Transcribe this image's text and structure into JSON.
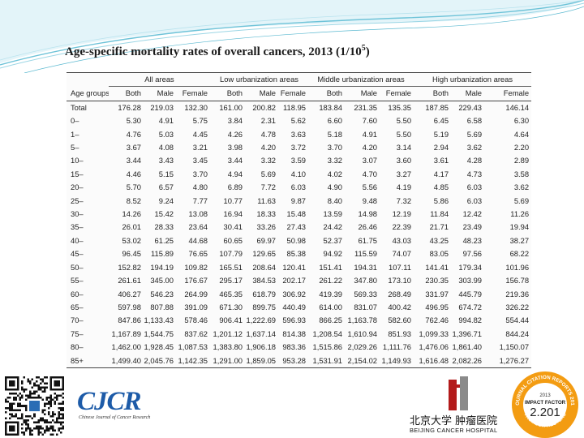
{
  "title": {
    "text": "Age-specific mortality rates of overall cancers, 2013 (1/10",
    "sup": "5",
    "close": ")"
  },
  "table": {
    "age_header": "Age groups",
    "groups": [
      "All areas",
      "Low urbanization areas",
      "Middle urbanization areas",
      "High urbanization areas"
    ],
    "subheaders": [
      "Both",
      "Male",
      "Female"
    ],
    "rows": [
      [
        "Total",
        "176.28",
        "219.03",
        "132.30",
        "161.00",
        "200.82",
        "118.95",
        "183.84",
        "231.35",
        "135.35",
        "187.85",
        "229.43",
        "146.14"
      ],
      [
        "0–",
        "5.30",
        "4.91",
        "5.75",
        "3.84",
        "2.31",
        "5.62",
        "6.60",
        "7.60",
        "5.50",
        "6.45",
        "6.58",
        "6.30"
      ],
      [
        "1–",
        "4.76",
        "5.03",
        "4.45",
        "4.26",
        "4.78",
        "3.63",
        "5.18",
        "4.91",
        "5.50",
        "5.19",
        "5.69",
        "4.64"
      ],
      [
        "5–",
        "3.67",
        "4.08",
        "3.21",
        "3.98",
        "4.20",
        "3.72",
        "3.70",
        "4.20",
        "3.14",
        "2.94",
        "3.62",
        "2.20"
      ],
      [
        "10–",
        "3.44",
        "3.43",
        "3.45",
        "3.44",
        "3.32",
        "3.59",
        "3.32",
        "3.07",
        "3.60",
        "3.61",
        "4.28",
        "2.89"
      ],
      [
        "15–",
        "4.46",
        "5.15",
        "3.70",
        "4.94",
        "5.69",
        "4.10",
        "4.02",
        "4.70",
        "3.27",
        "4.17",
        "4.73",
        "3.58"
      ],
      [
        "20–",
        "5.70",
        "6.57",
        "4.80",
        "6.89",
        "7.72",
        "6.03",
        "4.90",
        "5.56",
        "4.19",
        "4.85",
        "6.03",
        "3.62"
      ],
      [
        "25–",
        "8.52",
        "9.24",
        "7.77",
        "10.77",
        "11.63",
        "9.87",
        "8.40",
        "9.48",
        "7.32",
        "5.86",
        "6.03",
        "5.69"
      ],
      [
        "30–",
        "14.26",
        "15.42",
        "13.08",
        "16.94",
        "18.33",
        "15.48",
        "13.59",
        "14.98",
        "12.19",
        "11.84",
        "12.42",
        "11.26"
      ],
      [
        "35–",
        "26.01",
        "28.33",
        "23.64",
        "30.41",
        "33.26",
        "27.43",
        "24.42",
        "26.46",
        "22.39",
        "21.71",
        "23.49",
        "19.94"
      ],
      [
        "40–",
        "53.02",
        "61.25",
        "44.68",
        "60.65",
        "69.97",
        "50.98",
        "52.37",
        "61.75",
        "43.03",
        "43.25",
        "48.23",
        "38.27"
      ],
      [
        "45–",
        "96.45",
        "115.89",
        "76.65",
        "107.79",
        "129.65",
        "85.38",
        "94.92",
        "115.59",
        "74.07",
        "83.05",
        "97.56",
        "68.22"
      ],
      [
        "50–",
        "152.82",
        "194.19",
        "109.82",
        "165.51",
        "208.64",
        "120.41",
        "151.41",
        "194.31",
        "107.11",
        "141.41",
        "179.34",
        "101.96"
      ],
      [
        "55–",
        "261.61",
        "345.00",
        "176.67",
        "295.17",
        "384.53",
        "202.17",
        "261.22",
        "347.80",
        "173.10",
        "230.35",
        "303.99",
        "156.78"
      ],
      [
        "60–",
        "406.27",
        "546.23",
        "264.99",
        "465.35",
        "618.79",
        "306.92",
        "419.39",
        "569.33",
        "268.49",
        "331.97",
        "445.79",
        "219.36"
      ],
      [
        "65–",
        "597.98",
        "807.88",
        "391.09",
        "671.30",
        "899.75",
        "440.49",
        "614.00",
        "831.07",
        "400.42",
        "496.95",
        "674.72",
        "326.22"
      ],
      [
        "70–",
        "847.86",
        "1,133.43",
        "578.46",
        "906.41",
        "1,222.69",
        "596.93",
        "866.25",
        "1,163.78",
        "582.60",
        "762.46",
        "994.82",
        "554.44"
      ],
      [
        "75–",
        "1,167.89",
        "1,544.75",
        "837.62",
        "1,201.12",
        "1,637.14",
        "814.38",
        "1,208.54",
        "1,610.94",
        "851.93",
        "1,099.33",
        "1,396.71",
        "844.24"
      ],
      [
        "80–",
        "1,462.00",
        "1,928.45",
        "1,087.53",
        "1,383.80",
        "1,906.18",
        "983.36",
        "1,515.86",
        "2,029.26",
        "1,111.76",
        "1,476.06",
        "1,861.40",
        "1,150.07"
      ],
      [
        "85+",
        "1,499.40",
        "2,045.76",
        "1,142.35",
        "1,291.00",
        "1,859.05",
        "953.28",
        "1,531.91",
        "2,154.02",
        "1,149.93",
        "1,616.48",
        "2,082.26",
        "1,276.27"
      ]
    ]
  },
  "footer": {
    "cjcr_logo": "CJCR",
    "cjcr_subtitle": "Chinese Journal of Cancer Research",
    "hospital_cn": "北京大学 肿瘤医院",
    "hospital_en": "BEIJING CANCER HOSPITAL",
    "badge": {
      "arc_top": "JOURNAL CITATION REPORTS 2014",
      "arc_bottom": "THOMSON REUTERS",
      "year": "2013",
      "label": "IMPACT FACTOR",
      "value": "2.201"
    }
  },
  "colors": {
    "swoosh": "#6ec3d8",
    "cjcr_blue": "#1d5ba8",
    "badge_orange": "#f39c12",
    "hospital_red": "#b31b1b"
  }
}
